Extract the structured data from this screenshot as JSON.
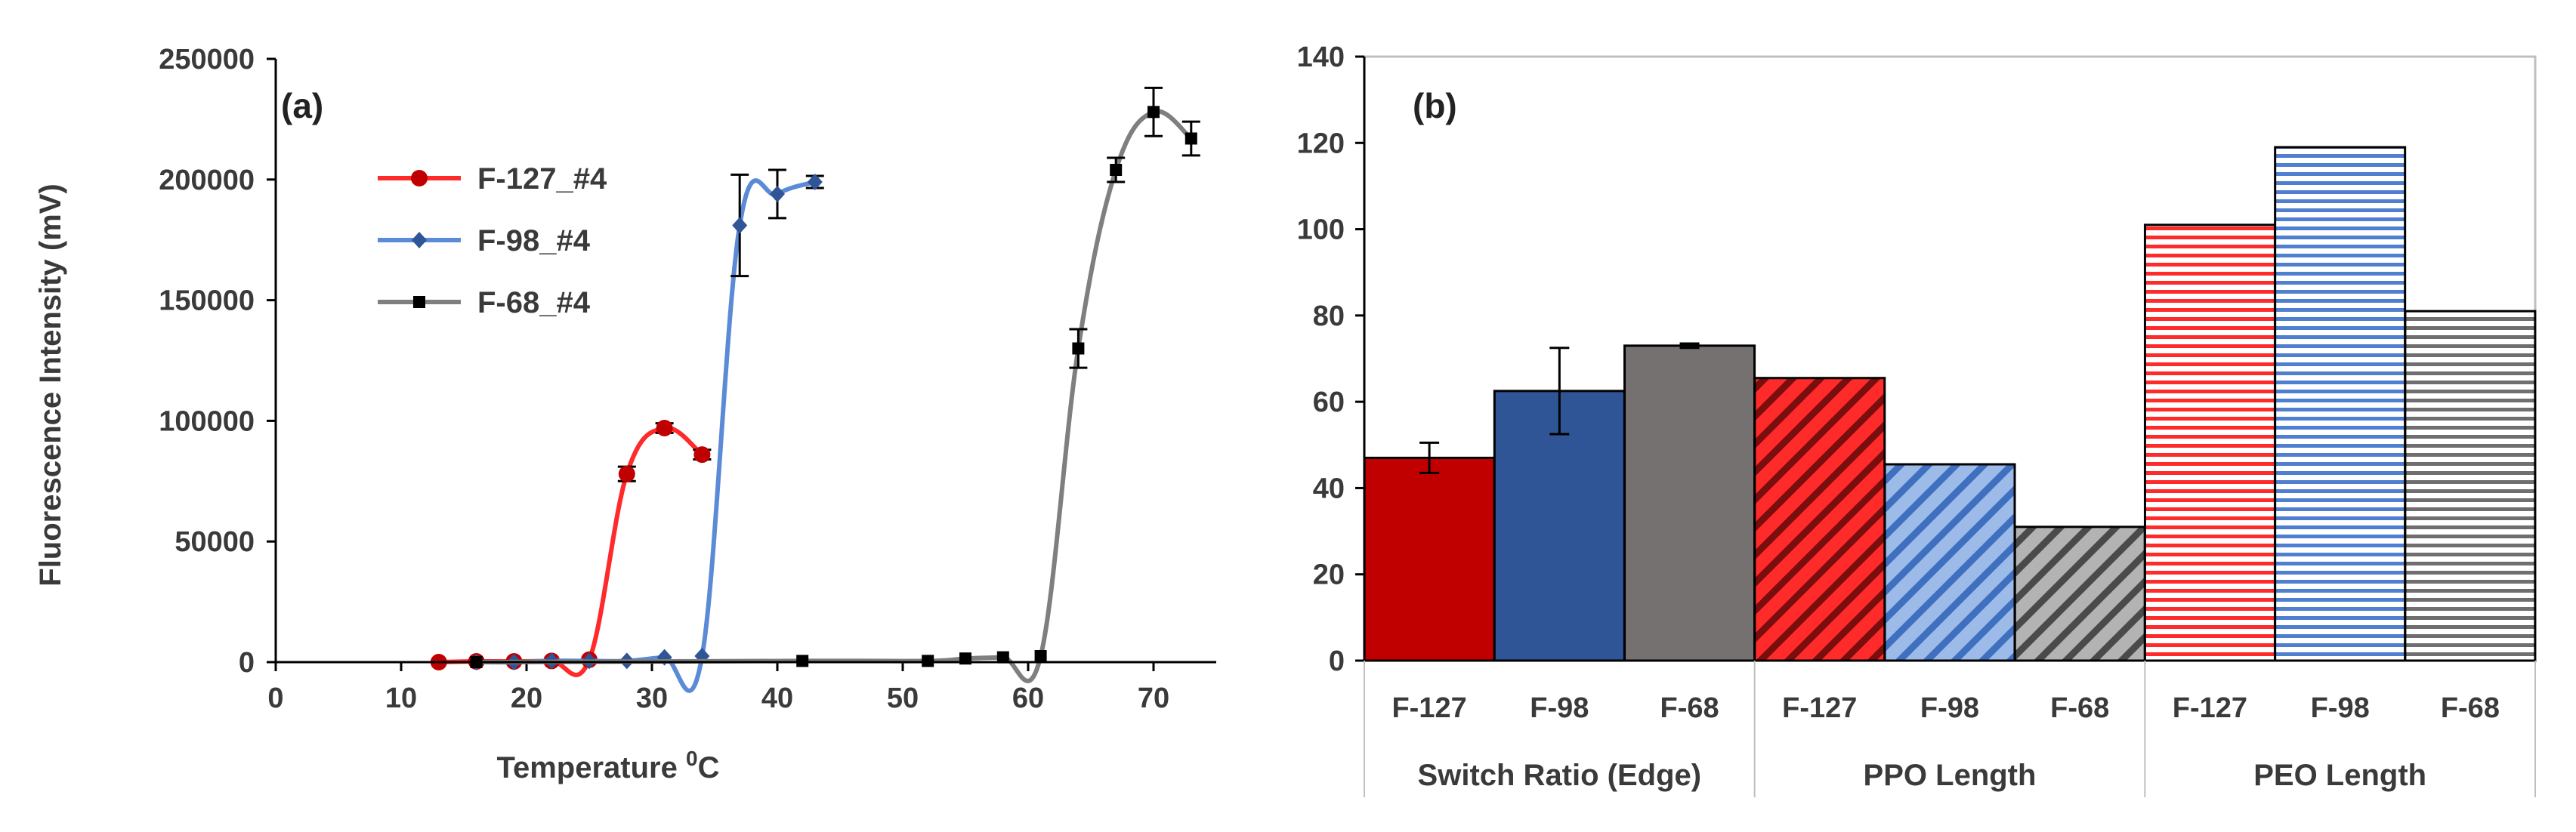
{
  "chart_data": [
    {
      "type": "line",
      "panel_label": "(a)",
      "xlabel": "Temperature",
      "xlabel_sup": "0",
      "xlabel_unit": "C",
      "ylabel": "Fluorescence Intensity (mV)",
      "xlim": [
        0,
        75
      ],
      "ylim": [
        0,
        250000
      ],
      "xticks": [
        0,
        10,
        20,
        30,
        40,
        50,
        60,
        70
      ],
      "yticks": [
        0,
        50000,
        100000,
        150000,
        200000,
        250000
      ],
      "series": [
        {
          "name": "F-127_#4",
          "color": "#ff2a2a",
          "marker": "circle",
          "x": [
            13,
            16,
            19,
            22,
            25,
            28,
            31,
            34
          ],
          "y": [
            0,
            300,
            300,
            500,
            1000,
            78000,
            97000,
            86000
          ],
          "err": [
            0,
            0,
            0,
            0,
            0,
            3000,
            2000,
            2000
          ]
        },
        {
          "name": "F-98_#4",
          "color": "#5b8bd6",
          "marker": "diamond",
          "x": [
            16,
            19,
            22,
            25,
            28,
            31,
            34,
            37,
            40,
            43
          ],
          "y": [
            0,
            0,
            500,
            500,
            500,
            2000,
            2500,
            181000,
            194000,
            199000
          ],
          "err": [
            0,
            0,
            0,
            0,
            0,
            0,
            0,
            21000,
            10000,
            2500
          ]
        },
        {
          "name": "F-68_#4",
          "color": "#7f7f7f",
          "marker": "square",
          "x": [
            16,
            42,
            52,
            55,
            58,
            61,
            64,
            67,
            70,
            73
          ],
          "y": [
            0,
            500,
            500,
            1500,
            2000,
            2500,
            130000,
            204000,
            228000,
            217000
          ],
          "err": [
            0,
            0,
            0,
            0,
            0,
            0,
            8000,
            5000,
            10000,
            7000
          ]
        }
      ]
    },
    {
      "type": "bar",
      "panel_label": "(b)",
      "ylim": [
        0,
        140
      ],
      "yticks": [
        0,
        20,
        40,
        60,
        80,
        100,
        120,
        140
      ],
      "categories": [
        "F-127",
        "F-98",
        "F-68",
        "F-127",
        "F-98",
        "F-68",
        "F-127",
        "F-98",
        "F-68"
      ],
      "groups": [
        "Switch Ratio (Edge)",
        "PPO Length",
        "PEO Length"
      ],
      "values": [
        47,
        62.5,
        73,
        65.5,
        45.5,
        31,
        101,
        119,
        81
      ],
      "err": [
        3.5,
        10,
        0.5,
        0,
        0,
        0,
        0,
        0,
        0
      ],
      "colors": [
        "#c00000",
        "#2f5597",
        "#767171",
        "#ff2a2a",
        "#8eaadb",
        "#a6a6a6",
        "#ff2a2a",
        "#5b8bd6",
        "#8c8c8c"
      ],
      "patterns": [
        "solid",
        "solid",
        "solid",
        "diag",
        "diag",
        "diag",
        "horiz",
        "horiz",
        "horiz"
      ]
    }
  ]
}
